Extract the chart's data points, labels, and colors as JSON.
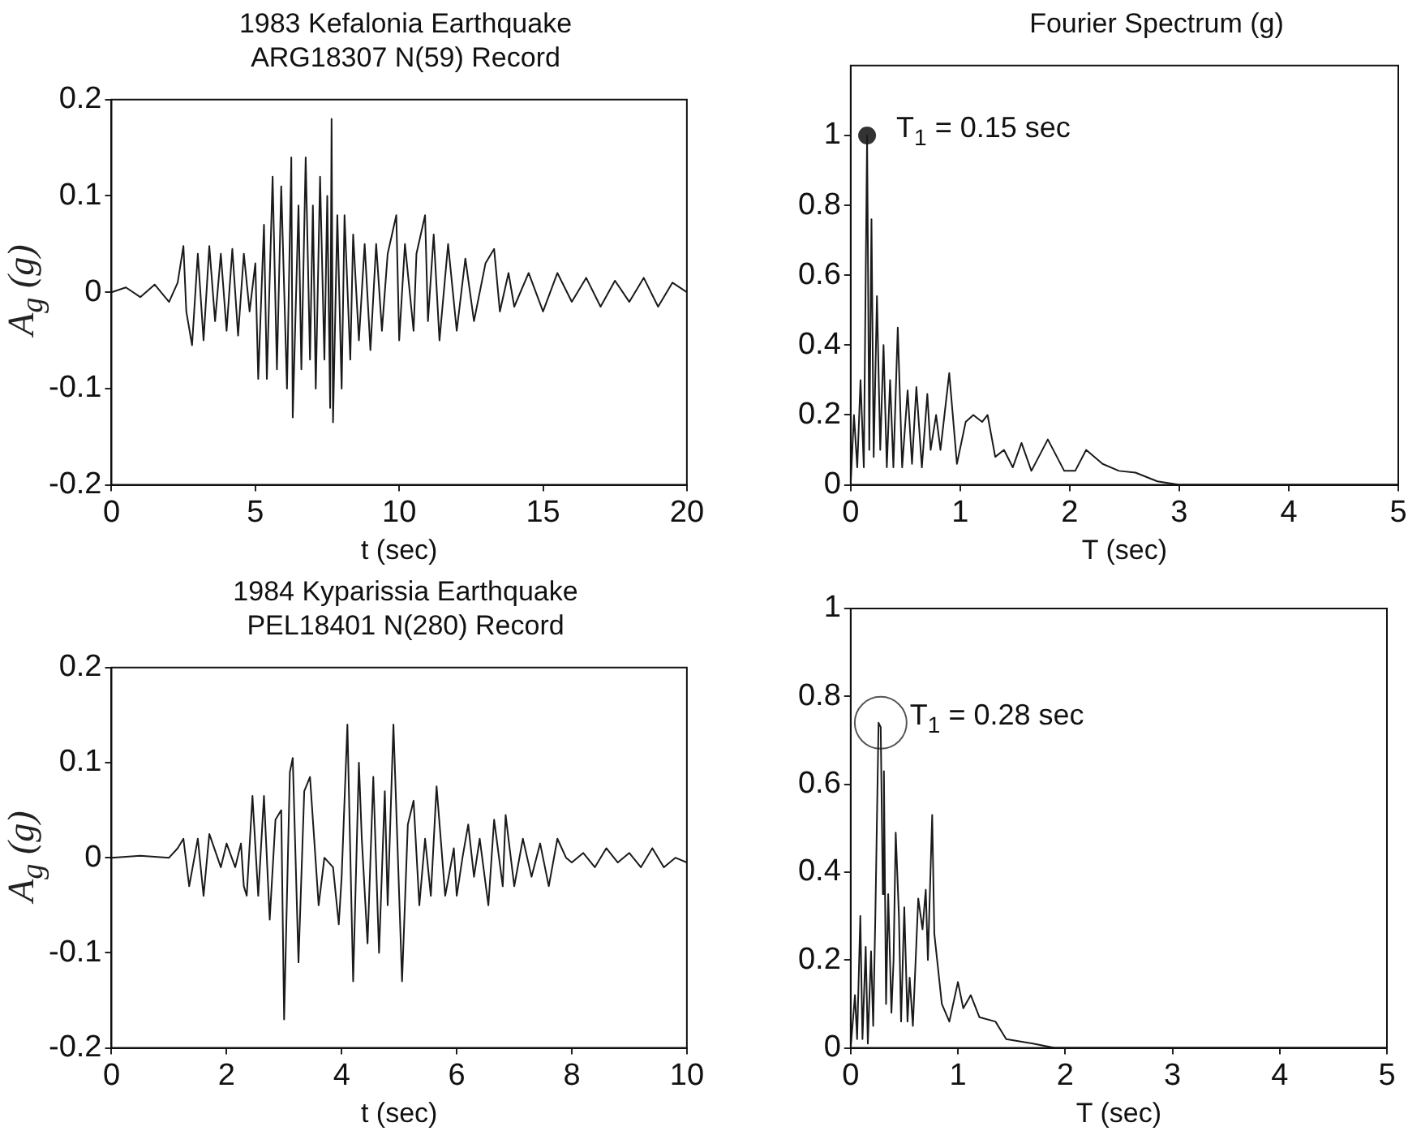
{
  "chart_data": [
    {
      "type": "line",
      "title": "1983 Kefalonia Earthquake\nARG18307 N(59) Record",
      "xlabel": "t (sec)",
      "ylabel": "A$_{g}$ (g)",
      "xlim": [
        0,
        20
      ],
      "xticks": [
        0,
        5,
        10,
        15,
        20
      ],
      "ylim": [
        -0.2,
        0.2
      ],
      "yticks": [
        -0.2,
        -0.1,
        0,
        0.1,
        0.2
      ],
      "marker": "none",
      "legend": false,
      "grid": false,
      "series": [
        {
          "color": "#1a1a1a",
          "x": [
            0,
            0.5,
            1,
            1.5,
            2,
            2.3,
            2.5,
            2.6,
            2.8,
            3.0,
            3.2,
            3.4,
            3.6,
            3.8,
            4.0,
            4.2,
            4.4,
            4.6,
            4.8,
            5.0,
            5.1,
            5.3,
            5.4,
            5.6,
            5.75,
            5.9,
            6.1,
            6.25,
            6.3,
            6.5,
            6.6,
            6.75,
            6.9,
            7.0,
            7.1,
            7.25,
            7.4,
            7.5,
            7.6,
            7.65,
            7.7,
            7.85,
            8.0,
            8.1,
            8.3,
            8.4,
            8.6,
            8.8,
            9.0,
            9.2,
            9.4,
            9.6,
            9.9,
            10.0,
            10.2,
            10.5,
            10.6,
            10.9,
            11.0,
            11.2,
            11.4,
            11.7,
            12.0,
            12.3,
            12.6,
            13.0,
            13.3,
            13.5,
            13.8,
            14.0,
            14.5,
            15.0,
            15.5,
            16,
            16.5,
            17,
            17.5,
            18,
            18.5,
            19,
            19.5,
            20
          ],
          "values": [
            0,
            0.005,
            -0.005,
            0.008,
            -0.01,
            0.01,
            0.048,
            -0.02,
            -0.055,
            0.04,
            -0.05,
            0.048,
            -0.03,
            0.04,
            -0.04,
            0.045,
            -0.045,
            0.04,
            -0.02,
            0.03,
            -0.09,
            0.07,
            -0.09,
            0.12,
            -0.08,
            0.11,
            -0.1,
            0.14,
            -0.13,
            0.09,
            -0.08,
            0.14,
            -0.07,
            0.09,
            -0.1,
            0.12,
            -0.07,
            0.1,
            -0.12,
            0.18,
            -0.135,
            0.08,
            -0.1,
            0.08,
            -0.07,
            0.06,
            -0.05,
            0.05,
            -0.06,
            0.05,
            -0.04,
            0.04,
            0.08,
            -0.05,
            0.05,
            -0.04,
            0.04,
            0.08,
            -0.03,
            0.06,
            -0.05,
            0.05,
            -0.04,
            0.035,
            -0.03,
            0.03,
            0.045,
            -0.02,
            0.02,
            -0.015,
            0.02,
            -0.02,
            0.02,
            -0.01,
            0.015,
            -0.015,
            0.012,
            -0.01,
            0.015,
            -0.015,
            0.01,
            0
          ]
        }
      ]
    },
    {
      "type": "line",
      "title": "Fourier Spectrum (g)",
      "xlabel": "T (sec)",
      "xlim": [
        0,
        5
      ],
      "xticks": [
        0,
        1,
        2,
        3,
        4,
        5
      ],
      "ylim": [
        0,
        1.2
      ],
      "yticks": [
        0,
        0.2,
        0.4,
        0.6,
        0.8,
        1
      ],
      "legend": false,
      "grid": false,
      "annotations": [
        {
          "text": "T$_{1}$ = 0.15 sec",
          "x": 0.15,
          "y": 1
        }
      ],
      "series": [
        {
          "color": "#1a1a1a",
          "marker": "none",
          "x": [
            0,
            0.03,
            0.06,
            0.09,
            0.12,
            0.15,
            0.17,
            0.19,
            0.21,
            0.24,
            0.27,
            0.3,
            0.33,
            0.36,
            0.39,
            0.43,
            0.47,
            0.52,
            0.56,
            0.6,
            0.65,
            0.7,
            0.73,
            0.78,
            0.82,
            0.9,
            0.97,
            1.05,
            1.12,
            1.2,
            1.25,
            1.32,
            1.4,
            1.48,
            1.56,
            1.65,
            1.8,
            1.95,
            2.05,
            2.15,
            2.3,
            2.45,
            2.6,
            2.8,
            3.0,
            3.5,
            4,
            5
          ],
          "values": [
            0,
            0.2,
            0.05,
            0.3,
            0.05,
            1.0,
            0.1,
            0.76,
            0.08,
            0.54,
            0.1,
            0.4,
            0.05,
            0.3,
            0.05,
            0.45,
            0.05,
            0.27,
            0.06,
            0.28,
            0.05,
            0.26,
            0.1,
            0.2,
            0.1,
            0.32,
            0.06,
            0.18,
            0.2,
            0.18,
            0.2,
            0.08,
            0.1,
            0.05,
            0.12,
            0.04,
            0.13,
            0.04,
            0.04,
            0.1,
            0.06,
            0.04,
            0.035,
            0.01,
            0,
            0,
            0,
            0
          ]
        },
        {
          "type": "scatter",
          "marker": "circle",
          "color": "#333333",
          "x": [
            0.15
          ],
          "values": [
            1
          ]
        }
      ]
    },
    {
      "type": "line",
      "title": "1984 Kyparissia Earthquake\nPEL18401 N(280) Record",
      "xlabel": "t (sec)",
      "ylabel": "A$_{g}$ (g)",
      "xlim": [
        0,
        10
      ],
      "xticks": [
        0,
        2,
        4,
        6,
        8,
        10
      ],
      "ylim": [
        -0.2,
        0.2
      ],
      "yticks": [
        -0.2,
        -0.1,
        0,
        0.1,
        0.2
      ],
      "marker": "none",
      "legend": false,
      "grid": false,
      "series": [
        {
          "color": "#1a1a1a",
          "x": [
            0,
            0.5,
            1,
            1.15,
            1.25,
            1.35,
            1.5,
            1.6,
            1.7,
            1.9,
            2.0,
            2.15,
            2.25,
            2.3,
            2.35,
            2.45,
            2.55,
            2.65,
            2.75,
            2.85,
            2.95,
            3.0,
            3.1,
            3.15,
            3.25,
            3.35,
            3.45,
            3.6,
            3.7,
            3.85,
            3.95,
            4.0,
            4.1,
            4.2,
            4.3,
            4.35,
            4.45,
            4.55,
            4.65,
            4.75,
            4.8,
            4.9,
            5.05,
            5.15,
            5.25,
            5.35,
            5.45,
            5.55,
            5.65,
            5.8,
            5.95,
            6.0,
            6.1,
            6.2,
            6.3,
            6.4,
            6.55,
            6.65,
            6.8,
            6.85,
            7.0,
            7.15,
            7.3,
            7.45,
            7.6,
            7.75,
            7.9,
            8.0,
            8.2,
            8.4,
            8.6,
            8.8,
            9.0,
            9.2,
            9.4,
            9.6,
            9.8,
            10
          ],
          "values": [
            0,
            0.002,
            0,
            0.01,
            0.02,
            -0.03,
            0.02,
            -0.04,
            0.025,
            -0.01,
            0.015,
            -0.01,
            0.015,
            -0.03,
            -0.04,
            0.065,
            -0.04,
            0.065,
            -0.065,
            0.04,
            0.05,
            -0.17,
            0.09,
            0.105,
            -0.11,
            0.07,
            0.085,
            -0.05,
            0,
            -0.01,
            -0.07,
            -0.02,
            0.14,
            -0.13,
            0.1,
            0.02,
            -0.09,
            0.085,
            -0.1,
            0.07,
            -0.05,
            0.14,
            -0.13,
            0.035,
            0.06,
            -0.05,
            0.02,
            -0.04,
            0.075,
            -0.04,
            0.01,
            -0.04,
            0,
            0.035,
            -0.02,
            0.02,
            -0.05,
            0.04,
            -0.03,
            0.045,
            -0.03,
            0.02,
            -0.02,
            0.015,
            -0.03,
            0.02,
            0,
            -0.005,
            0.005,
            -0.01,
            0.01,
            -0.005,
            0.005,
            -0.01,
            0.01,
            -0.01,
            0,
            -0.005
          ]
        }
      ]
    },
    {
      "type": "line",
      "xlabel": "T (sec)",
      "xlim": [
        0,
        5
      ],
      "xticks": [
        0,
        1,
        2,
        3,
        4,
        5
      ],
      "ylim": [
        0,
        1
      ],
      "yticks": [
        0,
        0.2,
        0.4,
        0.6,
        0.8,
        1
      ],
      "legend": false,
      "grid": false,
      "annotations": [
        {
          "text": "T$_{1}$ = 0.28 sec",
          "x": 0.28,
          "y": 0.74
        }
      ],
      "series": [
        {
          "color": "#1a1a1a",
          "marker": "none",
          "x": [
            0,
            0.04,
            0.06,
            0.09,
            0.11,
            0.14,
            0.16,
            0.19,
            0.21,
            0.23,
            0.26,
            0.28,
            0.3,
            0.31,
            0.33,
            0.35,
            0.38,
            0.4,
            0.42,
            0.45,
            0.47,
            0.5,
            0.53,
            0.55,
            0.58,
            0.63,
            0.67,
            0.7,
            0.72,
            0.76,
            0.78,
            0.85,
            0.92,
            1.0,
            1.05,
            1.12,
            1.2,
            1.35,
            1.45,
            1.7,
            1.9,
            3,
            5
          ],
          "values": [
            0,
            0.12,
            0.02,
            0.3,
            0.02,
            0.23,
            0.01,
            0.22,
            0.05,
            0.3,
            0.74,
            0.73,
            0.35,
            0.63,
            0.1,
            0.35,
            0.08,
            0.2,
            0.49,
            0.3,
            0.06,
            0.32,
            0.06,
            0.16,
            0.05,
            0.34,
            0.27,
            0.36,
            0.2,
            0.53,
            0.26,
            0.1,
            0.06,
            0.15,
            0.09,
            0.12,
            0.07,
            0.06,
            0.02,
            0.01,
            0,
            0,
            0
          ]
        },
        {
          "type": "bubble",
          "marker": "circle",
          "color": "#555555",
          "x": [
            0.28
          ],
          "values": [
            0.74
          ],
          "sizes": [
            1
          ]
        }
      ]
    }
  ]
}
